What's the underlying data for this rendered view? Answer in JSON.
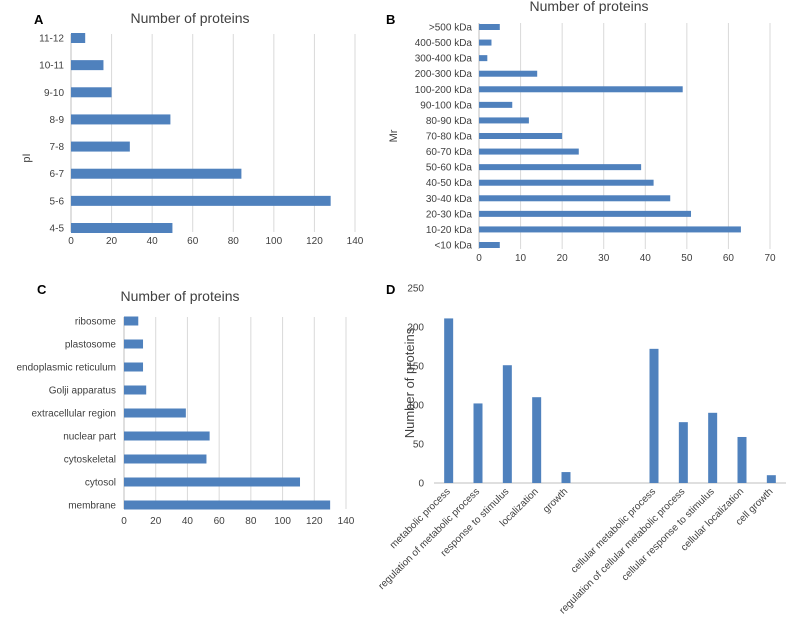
{
  "chart_data": [
    {
      "id": "A",
      "type": "bar",
      "orientation": "horizontal",
      "panel_label": "A",
      "title": "Number of proteins",
      "ylabel": "pI",
      "xlabel": "",
      "categories": [
        "4-5",
        "5-6",
        "6-7",
        "7-8",
        "8-9",
        "9-10",
        "10-11",
        "11-12"
      ],
      "values": [
        50,
        128,
        84,
        29,
        49,
        20,
        16,
        7
      ],
      "xlim": [
        0,
        140
      ],
      "xticks": [
        0,
        20,
        40,
        60,
        80,
        100,
        120,
        140
      ],
      "grid": true,
      "color": "#4f81bd"
    },
    {
      "id": "B",
      "type": "bar",
      "orientation": "horizontal",
      "panel_label": "B",
      "title": "Number of proteins",
      "ylabel": "Mr",
      "xlabel": "",
      "categories": [
        "<10 kDa",
        "10-20 kDa",
        "20-30 kDa",
        "30-40 kDa",
        "40-50 kDa",
        "50-60 kDa",
        "60-70 kDa",
        "70-80 kDa",
        "80-90 kDa",
        "90-100 kDa",
        "100-200 kDa",
        "200-300 kDa",
        "300-400 kDa",
        "400-500 kDa",
        ">500 kDa"
      ],
      "values": [
        5,
        63,
        51,
        46,
        42,
        39,
        24,
        20,
        12,
        8,
        49,
        14,
        2,
        3,
        5
      ],
      "xlim": [
        0,
        70
      ],
      "xticks": [
        0,
        10,
        20,
        30,
        40,
        50,
        60,
        70
      ],
      "grid": true,
      "color": "#4f81bd"
    },
    {
      "id": "C",
      "type": "bar",
      "orientation": "horizontal",
      "panel_label": "C",
      "title": "Number of proteins",
      "ylabel": "",
      "xlabel": "",
      "categories": [
        "membrane",
        "cytosol",
        "cytoskeletal",
        "nuclear part",
        "extracellular region",
        "Golji apparatus",
        "endoplasmic reticulum",
        "plastosome",
        "ribosome"
      ],
      "values": [
        130,
        111,
        52,
        54,
        39,
        14,
        12,
        12,
        9
      ],
      "xlim": [
        0,
        140
      ],
      "xticks": [
        0,
        20,
        40,
        60,
        80,
        100,
        120,
        140
      ],
      "grid": true,
      "color": "#4f81bd"
    },
    {
      "id": "D",
      "type": "bar",
      "orientation": "vertical",
      "panel_label": "D",
      "title": "",
      "ylabel": "Number of proteins",
      "xlabel": "",
      "categories": [
        "metabolic process",
        "regulation of metabolic process",
        "response to stimulus",
        "localization",
        "growth",
        "",
        "",
        "cellular metabolic process",
        "regulation of cellular metabolic process",
        "cellular response to stimulus",
        "cellular localization",
        "cell growth"
      ],
      "values": [
        211,
        102,
        151,
        110,
        14,
        null,
        null,
        172,
        78,
        90,
        59,
        10
      ],
      "ylim": [
        0,
        250
      ],
      "yticks": [
        0,
        50,
        100,
        150,
        200,
        250
      ],
      "grid": false,
      "color": "#4f81bd"
    }
  ]
}
